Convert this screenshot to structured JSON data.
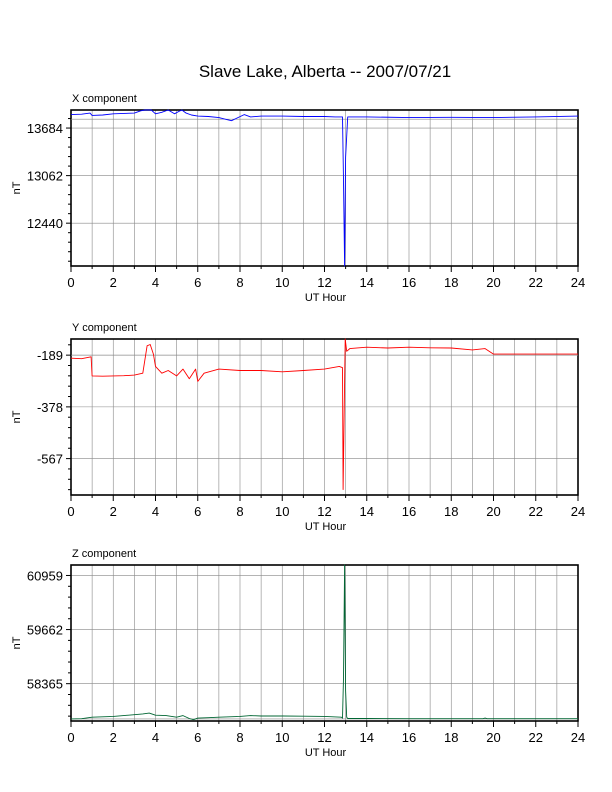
{
  "chart_data": {
    "type": "line",
    "title": "Slave Lake, Alberta -- 2007/07/21",
    "panels": [
      {
        "title": "X component",
        "xlabel": "UT Hour",
        "ylabel": "nT",
        "color": "#0000ff",
        "xlim": [
          0,
          24
        ],
        "ylim": [
          11880,
          13920
        ],
        "yticks": [
          12440,
          13062,
          13684
        ],
        "baseline": 13800,
        "x": [
          0,
          0.5,
          0.9,
          1.0,
          1.5,
          2.0,
          2.5,
          3.0,
          3.3,
          3.5,
          3.65,
          3.8,
          4.0,
          4.3,
          4.6,
          4.9,
          5.1,
          5.25,
          5.45,
          5.7,
          6.0,
          6.5,
          7.0,
          7.3,
          7.6,
          7.9,
          8.2,
          8.5,
          9.0,
          10.0,
          11.0,
          12.0,
          12.5,
          12.85,
          12.9,
          12.95,
          13.0,
          13.1,
          14.0,
          16.0,
          18.0,
          20.0,
          22.0,
          24.0
        ],
        "y": [
          13860,
          13865,
          13880,
          13850,
          13855,
          13870,
          13875,
          13880,
          13910,
          13950,
          13980,
          13920,
          13870,
          13890,
          13920,
          13870,
          13900,
          13930,
          13880,
          13855,
          13840,
          13835,
          13820,
          13800,
          13780,
          13820,
          13860,
          13830,
          13840,
          13840,
          13835,
          13835,
          13830,
          13830,
          13000,
          11880,
          13300,
          13830,
          13830,
          13820,
          13825,
          13820,
          13830,
          13840
        ]
      },
      {
        "title": "Y component",
        "xlabel": "UT Hour",
        "ylabel": "nT",
        "color": "#ff0000",
        "xlim": [
          0,
          24
        ],
        "ylim": [
          -700,
          -130
        ],
        "yticks": [
          -567,
          -378,
          -189
        ],
        "baseline": -189,
        "x": [
          0,
          0.5,
          0.95,
          1.0,
          1.5,
          2.0,
          2.5,
          3.0,
          3.4,
          3.6,
          3.75,
          3.9,
          4.0,
          4.3,
          4.6,
          5.0,
          5.3,
          5.6,
          5.9,
          6.0,
          6.3,
          7.0,
          8.0,
          9.0,
          10.0,
          11.0,
          12.0,
          12.7,
          12.85,
          12.88,
          12.93,
          12.98,
          13.05,
          13.2,
          14.0,
          15.0,
          16.0,
          17.0,
          18.0,
          19.0,
          19.6,
          20.0,
          22.0,
          24.0
        ],
        "y": [
          -200,
          -202,
          -195,
          -265,
          -266,
          -265,
          -264,
          -262,
          -255,
          -155,
          -150,
          -185,
          -230,
          -255,
          -245,
          -265,
          -240,
          -275,
          -240,
          -285,
          -255,
          -240,
          -245,
          -245,
          -250,
          -245,
          -240,
          -230,
          -235,
          -680,
          -420,
          -130,
          -175,
          -165,
          -160,
          -163,
          -160,
          -162,
          -163,
          -170,
          -165,
          -185,
          -185,
          -185
        ]
      },
      {
        "title": "Z component",
        "xlabel": "UT Hour",
        "ylabel": "nT",
        "color": "#006633",
        "xlim": [
          0,
          24
        ],
        "ylim": [
          57470,
          61210
        ],
        "yticks": [
          58365,
          59662,
          60959
        ],
        "baseline": 57520,
        "x": [
          0,
          0.5,
          1.0,
          2.0,
          3.0,
          3.4,
          3.7,
          4.0,
          4.5,
          5.0,
          5.3,
          5.6,
          5.8,
          6.0,
          6.5,
          7.0,
          7.5,
          8.0,
          8.5,
          9.0,
          10.0,
          11.0,
          12.0,
          12.8,
          12.85,
          12.9,
          12.95,
          13.0,
          13.05,
          13.1,
          14.0,
          16.0,
          18.0,
          19.5,
          19.6,
          19.7,
          20.0,
          22.0,
          24.0
        ],
        "y": [
          57520,
          57525,
          57560,
          57580,
          57620,
          57640,
          57660,
          57610,
          57600,
          57560,
          57600,
          57530,
          57500,
          57540,
          57550,
          57560,
          57570,
          57580,
          57600,
          57590,
          57590,
          57585,
          57580,
          57560,
          57540,
          58500,
          61210,
          58200,
          57560,
          57530,
          57530,
          57525,
          57525,
          57525,
          57540,
          57525,
          57525,
          57525,
          57525
        ]
      }
    ]
  }
}
